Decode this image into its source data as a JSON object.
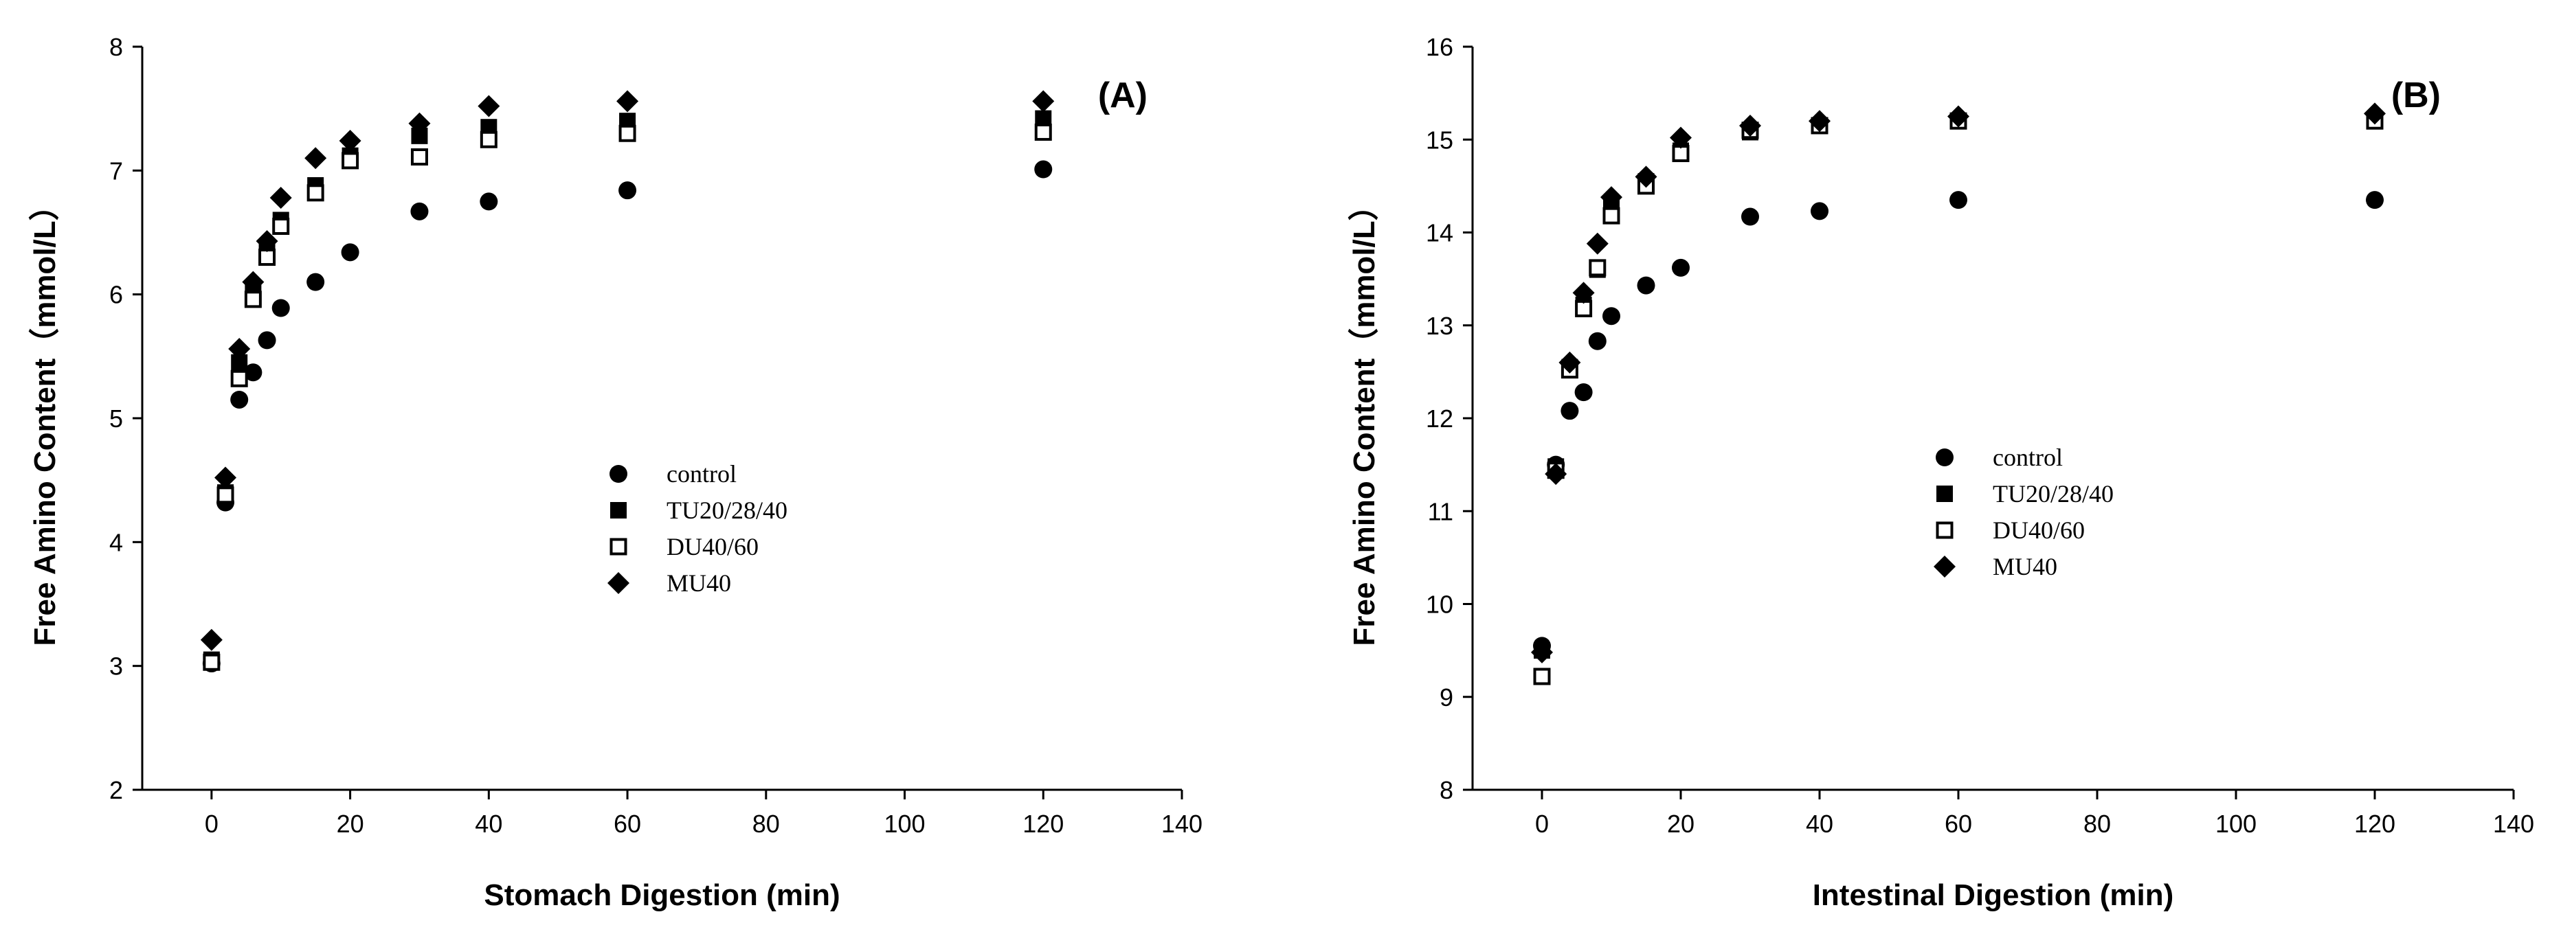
{
  "chart_data": [
    {
      "type": "scatter",
      "panel_label": "(A)",
      "xlabel": "Stomach Digestion (min)",
      "ylabel": "Free Amino Content（mmol/L）",
      "xlim": [
        -10,
        140
      ],
      "ylim": [
        2,
        8
      ],
      "xticks": [
        0,
        20,
        40,
        60,
        80,
        100,
        120,
        140
      ],
      "yticks": [
        2,
        3,
        4,
        5,
        6,
        7,
        8
      ],
      "x": [
        0,
        2,
        4,
        6,
        8,
        10,
        15,
        20,
        30,
        40,
        60,
        120
      ],
      "legend_position": "center",
      "series": [
        {
          "name": "control",
          "marker": "circle",
          "values": [
            3.02,
            4.32,
            5.15,
            5.37,
            5.63,
            5.89,
            6.1,
            6.34,
            6.67,
            6.75,
            6.84,
            7.01
          ]
        },
        {
          "name": "TU20/28/40",
          "marker": "square",
          "values": [
            3.05,
            4.4,
            5.45,
            6.02,
            6.38,
            6.6,
            6.88,
            7.12,
            7.28,
            7.35,
            7.4,
            7.42
          ]
        },
        {
          "name": "DU40/60",
          "marker": "square-open",
          "values": [
            3.03,
            4.38,
            5.32,
            5.96,
            6.3,
            6.55,
            6.82,
            7.08,
            7.11,
            7.25,
            7.3,
            7.31
          ]
        },
        {
          "name": "MU40",
          "marker": "diamond",
          "values": [
            3.21,
            4.52,
            5.56,
            6.1,
            6.43,
            6.78,
            7.1,
            7.24,
            7.38,
            7.52,
            7.56,
            7.56
          ]
        }
      ]
    },
    {
      "type": "scatter",
      "panel_label": "(B)",
      "xlabel": "Intestinal Digestion (min)",
      "ylabel": "Free Amino Content（mmol/L）",
      "xlim": [
        -10,
        140
      ],
      "ylim": [
        8,
        16
      ],
      "xticks": [
        0,
        20,
        40,
        60,
        80,
        100,
        120,
        140
      ],
      "yticks": [
        8,
        9,
        10,
        11,
        12,
        13,
        14,
        15,
        16
      ],
      "x": [
        0,
        2,
        4,
        6,
        8,
        10,
        15,
        20,
        30,
        40,
        60,
        120
      ],
      "legend_position": "center",
      "series": [
        {
          "name": "control",
          "marker": "circle",
          "values": [
            9.55,
            11.5,
            12.08,
            12.28,
            12.83,
            13.1,
            13.43,
            13.62,
            14.17,
            14.23,
            14.35,
            14.35
          ]
        },
        {
          "name": "TU20/28/40",
          "marker": "square",
          "values": [
            9.5,
            11.48,
            12.55,
            13.22,
            13.6,
            14.28,
            14.55,
            14.88,
            15.08,
            15.15,
            15.2,
            15.22
          ]
        },
        {
          "name": "DU40/60",
          "marker": "square-open",
          "values": [
            9.22,
            11.44,
            12.52,
            13.18,
            13.62,
            14.18,
            14.5,
            14.85,
            15.1,
            15.15,
            15.2,
            15.2
          ]
        },
        {
          "name": "MU40",
          "marker": "diamond",
          "values": [
            9.48,
            11.4,
            12.6,
            13.35,
            13.88,
            14.38,
            14.6,
            15.02,
            15.15,
            15.2,
            15.25,
            15.28
          ]
        }
      ]
    }
  ]
}
